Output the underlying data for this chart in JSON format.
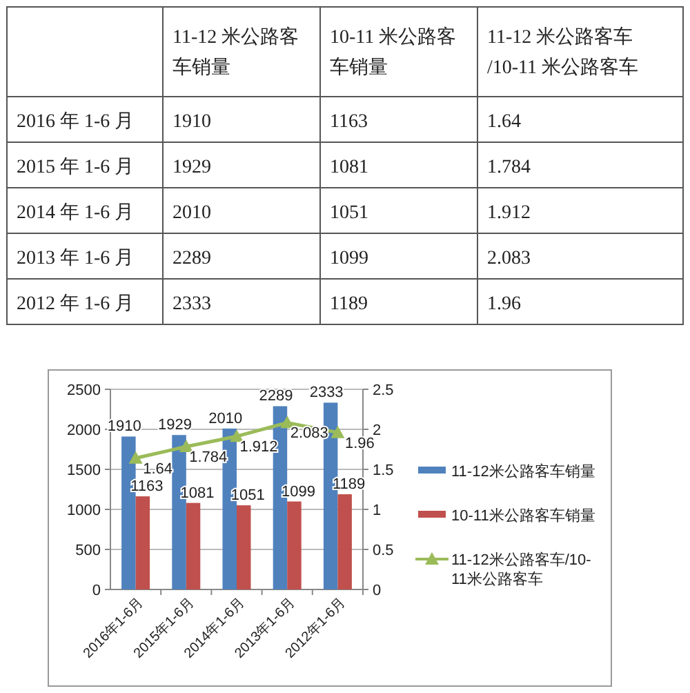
{
  "chart_data": [
    {
      "type": "heatmap",
      "categories": [
        "11-12 米公路客车销量",
        "10-11 米公路客车销量",
        "11-12 米公路客车/10-11 米公路客车"
      ],
      "y_categories": [
        "2016 年 1-6 月",
        "2015 年 1-6 月",
        "2014 年 1-6 月",
        "2013 年 1-6 月",
        "2012 年 1-6 月"
      ],
      "cells": [
        [
          1910,
          1163,
          1.64
        ],
        [
          1929,
          1081,
          1.784
        ],
        [
          2010,
          1051,
          1.912
        ],
        [
          2289,
          1099,
          2.083
        ],
        [
          2333,
          1189,
          1.96
        ]
      ],
      "data_labels": true
    },
    {
      "type": "bar",
      "categories": [
        "2016年1-6月",
        "2015年1-6月",
        "2014年1-6月",
        "2013年1-6月",
        "2012年1-6月"
      ],
      "series": [
        {
          "name": "11-12米公路客车销量",
          "color": "#4f81bd",
          "values": [
            1910,
            1929,
            2010,
            2289,
            2333
          ]
        },
        {
          "name": "10-11米公路客车销量",
          "color": "#c0504d",
          "values": [
            1163,
            1081,
            1051,
            1099,
            1189
          ]
        },
        {
          "name": "11-12米公路客车/10-11米公路客车",
          "type": "line",
          "axis": "y2",
          "color": "#9bbb59",
          "marker": "triangle",
          "values": [
            1.64,
            1.784,
            1.912,
            2.083,
            1.96
          ]
        }
      ],
      "ylim": [
        0,
        2500
      ],
      "yticks": [
        0,
        500,
        1000,
        1500,
        2000,
        2500
      ],
      "y2lim": [
        0,
        2.5
      ],
      "y2ticks": [
        0,
        0.5,
        1,
        1.5,
        2,
        2.5
      ],
      "grid": "y",
      "legend": "right",
      "data_labels": true
    }
  ]
}
